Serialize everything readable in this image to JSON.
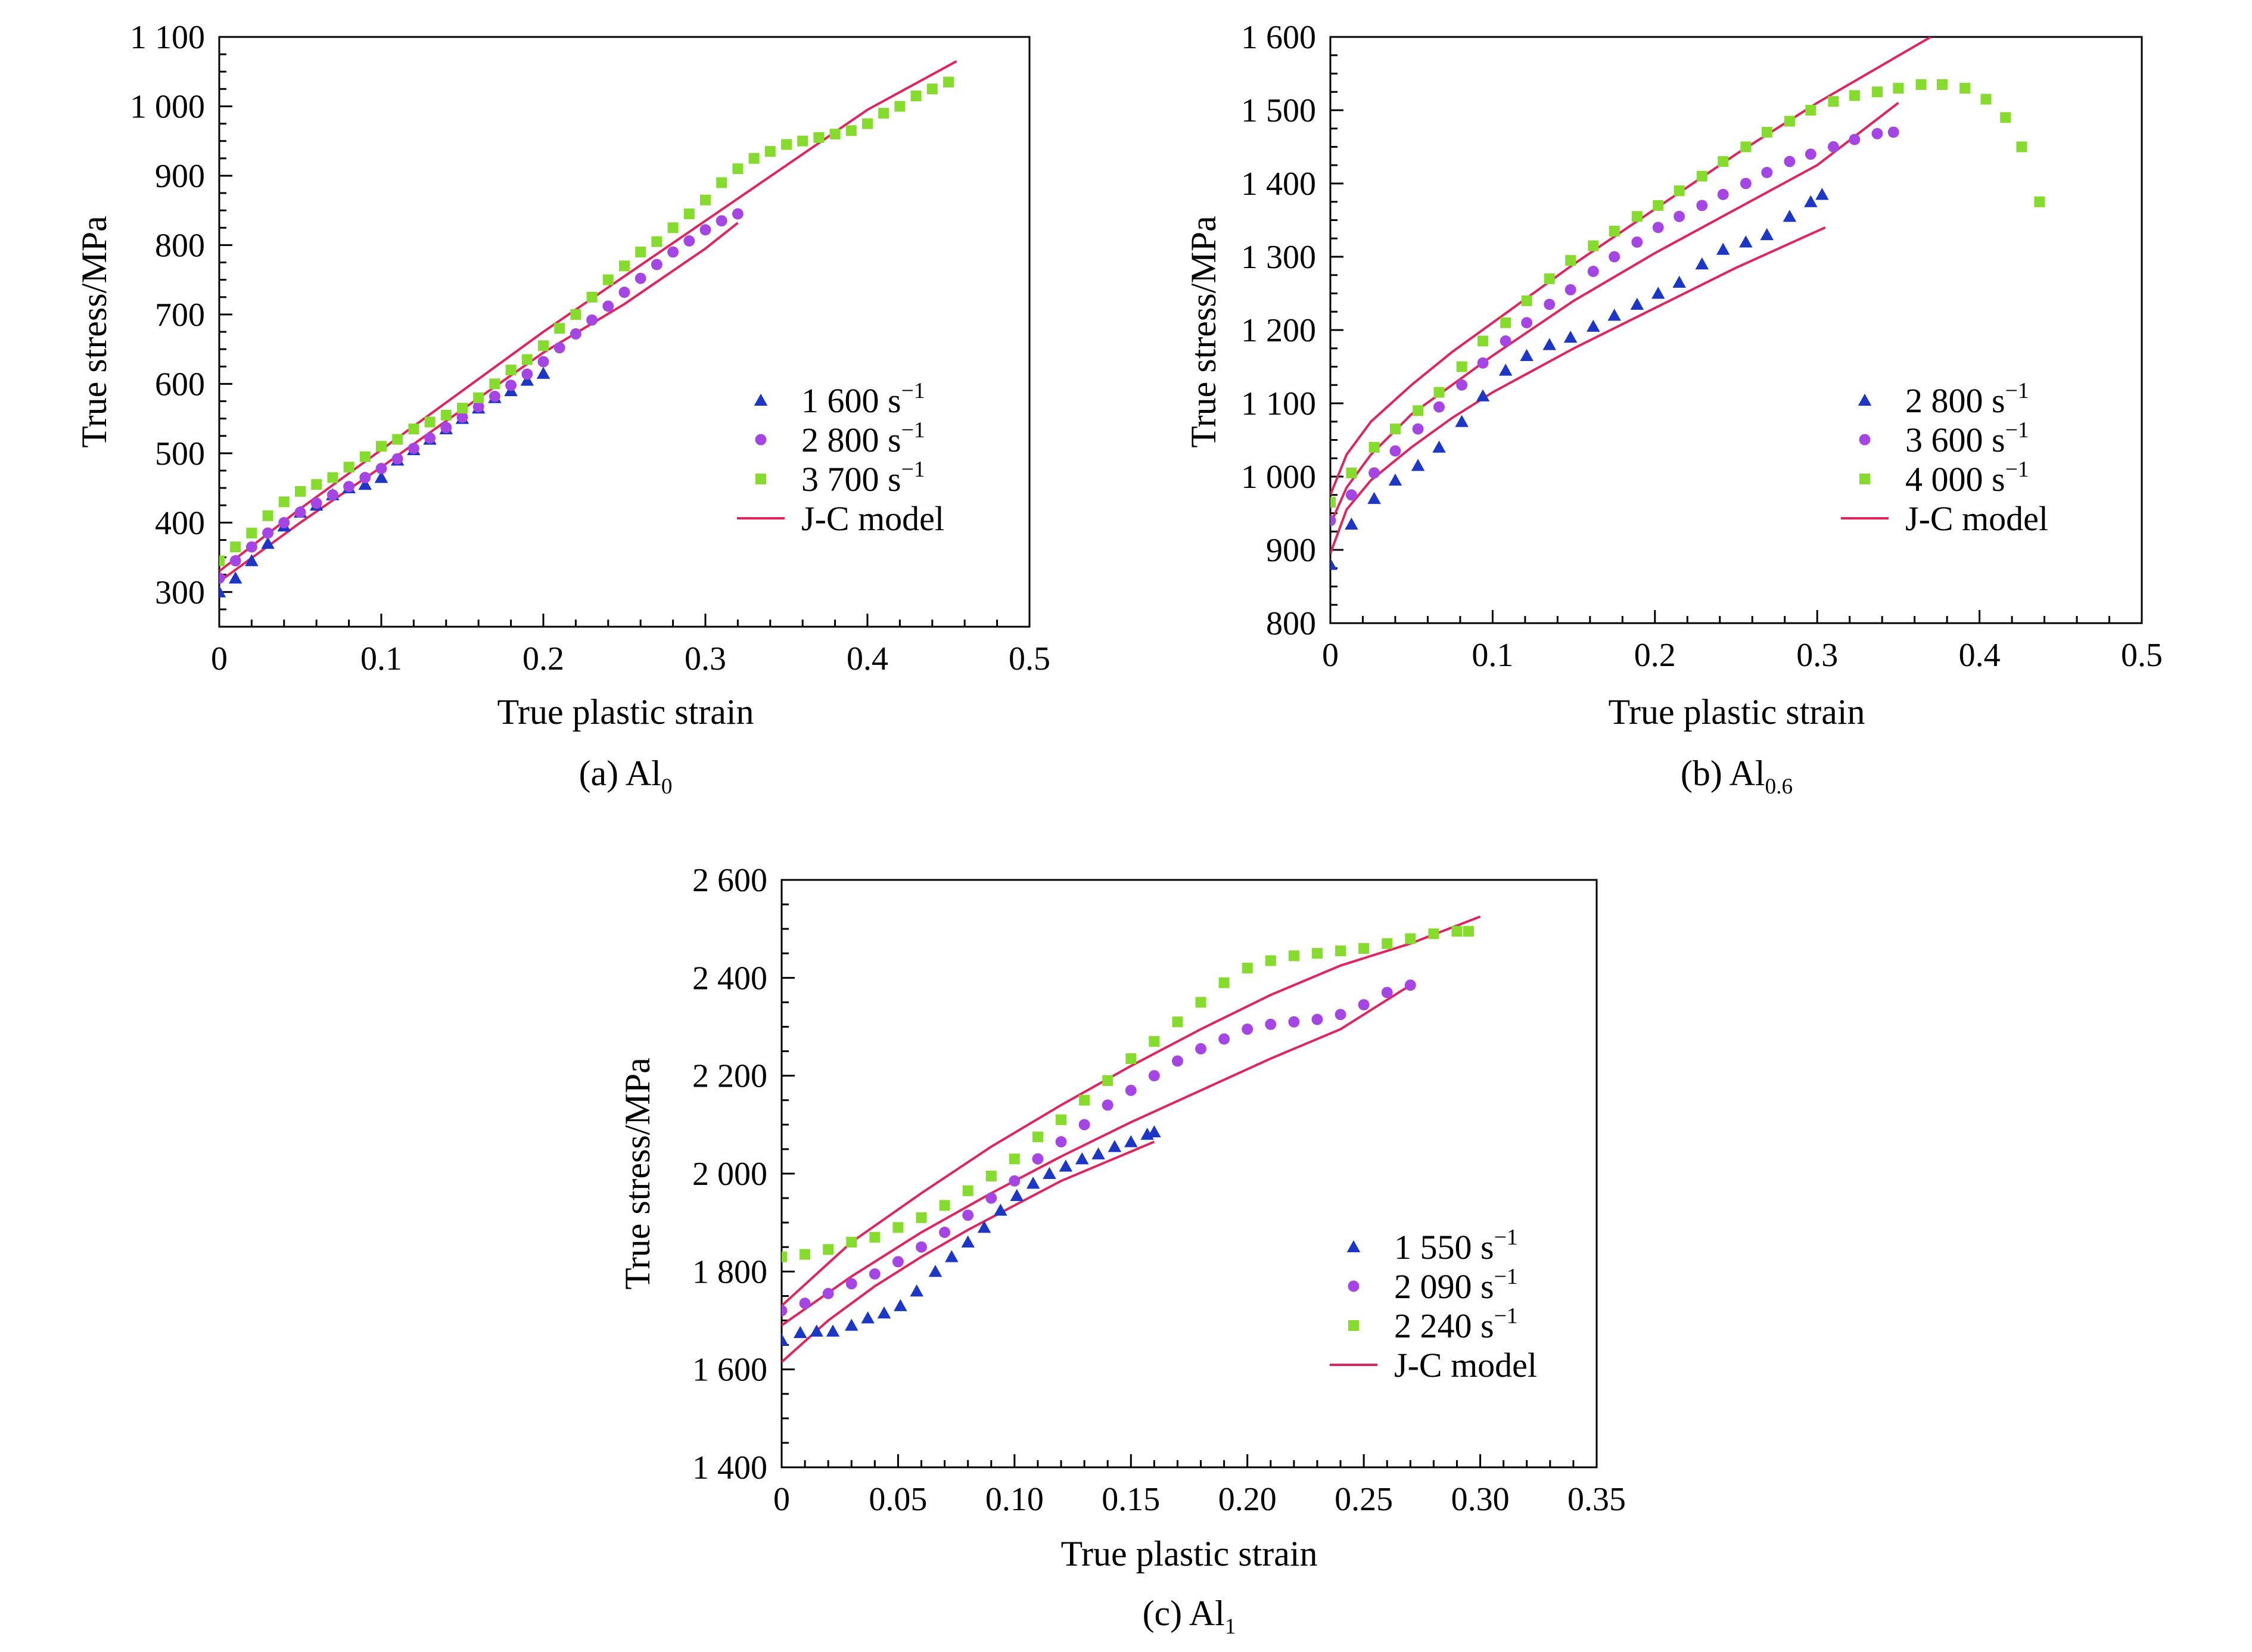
{
  "colors": {
    "series_blue": "#1c36c8",
    "series_purple": "#a545e6",
    "series_green": "#86dc2c",
    "model_line": "#e0245e",
    "axis": "#000000"
  },
  "chart_data": [
    {
      "id": "a",
      "type": "scatter",
      "caption_prefix": "(a) Al",
      "caption_sub": "0",
      "xlabel": "True plastic strain",
      "ylabel": "True stress/MPa",
      "xlim": [
        0,
        0.5
      ],
      "ylim": [
        250,
        1100
      ],
      "xticks": [
        0,
        0.1,
        0.2,
        0.3,
        0.4,
        0.5
      ],
      "xtick_labels": [
        "0",
        "0.1",
        "0.2",
        "0.3",
        "0.4",
        "0.5"
      ],
      "yticks": [
        300,
        400,
        500,
        600,
        700,
        800,
        900,
        1000,
        1100
      ],
      "ytick_labels": [
        "300",
        "400",
        "500",
        "600",
        "700",
        "800",
        "900",
        "1 000",
        "1 100"
      ],
      "legend_position": "right",
      "legend": [
        {
          "label": "1 600 s",
          "sup": "−1",
          "marker": "triangle",
          "color": "#1c36c8"
        },
        {
          "label": "2 800 s",
          "sup": "−1",
          "marker": "circle",
          "color": "#a545e6"
        },
        {
          "label": "3 700 s",
          "sup": "−1",
          "marker": "square",
          "color": "#86dc2c"
        },
        {
          "label": "J-C model",
          "marker": "line",
          "color": "#e0245e"
        }
      ],
      "series": [
        {
          "name": "1 600 s−1",
          "marker": "triangle",
          "color": "#1c36c8",
          "x": [
            0,
            0.01,
            0.02,
            0.03,
            0.04,
            0.05,
            0.06,
            0.07,
            0.08,
            0.09,
            0.1,
            0.11,
            0.12,
            0.13,
            0.14,
            0.15,
            0.16,
            0.17,
            0.18,
            0.19,
            0.2
          ],
          "y": [
            300,
            320,
            345,
            370,
            395,
            415,
            425,
            440,
            450,
            455,
            465,
            490,
            505,
            520,
            535,
            550,
            565,
            580,
            590,
            605,
            615
          ]
        },
        {
          "name": "2 800 s−1",
          "marker": "circle",
          "color": "#a545e6",
          "x": [
            0,
            0.01,
            0.02,
            0.03,
            0.04,
            0.05,
            0.06,
            0.07,
            0.08,
            0.09,
            0.1,
            0.11,
            0.12,
            0.13,
            0.14,
            0.15,
            0.16,
            0.17,
            0.18,
            0.19,
            0.2,
            0.21,
            0.22,
            0.23,
            0.24,
            0.25,
            0.26,
            0.27,
            0.28,
            0.29,
            0.3,
            0.31,
            0.32
          ],
          "y": [
            320,
            345,
            365,
            385,
            400,
            415,
            428,
            440,
            452,
            465,
            478,
            492,
            507,
            522,
            537,
            552,
            567,
            582,
            598,
            614,
            632,
            652,
            672,
            692,
            712,
            732,
            752,
            772,
            790,
            806,
            822,
            835,
            845
          ]
        },
        {
          "name": "3 700 s−1",
          "marker": "square",
          "color": "#86dc2c",
          "x": [
            0,
            0.01,
            0.02,
            0.03,
            0.04,
            0.05,
            0.06,
            0.07,
            0.08,
            0.09,
            0.1,
            0.11,
            0.12,
            0.13,
            0.14,
            0.15,
            0.16,
            0.17,
            0.18,
            0.19,
            0.2,
            0.21,
            0.22,
            0.23,
            0.24,
            0.25,
            0.26,
            0.27,
            0.28,
            0.29,
            0.3,
            0.31,
            0.32,
            0.33,
            0.34,
            0.35,
            0.36,
            0.37,
            0.38,
            0.39,
            0.4,
            0.41,
            0.42,
            0.43,
            0.44,
            0.45
          ],
          "y": [
            345,
            365,
            385,
            410,
            430,
            445,
            455,
            465,
            480,
            495,
            510,
            520,
            535,
            545,
            555,
            565,
            580,
            600,
            620,
            635,
            655,
            680,
            700,
            725,
            750,
            770,
            790,
            805,
            825,
            845,
            865,
            890,
            910,
            925,
            935,
            945,
            950,
            955,
            960,
            965,
            975,
            990,
            1000,
            1015,
            1025,
            1035
          ]
        },
        {
          "name": "J-C model",
          "marker": "line",
          "color": "#e0245e",
          "x": [
            0,
            0.05,
            0.1,
            0.15,
            0.2,
            0.25,
            0.3,
            0.32
          ],
          "y": [
            315,
            400,
            480,
            563,
            645,
            715,
            795,
            832
          ]
        },
        {
          "name": "J-C model",
          "marker": "line",
          "color": "#e0245e",
          "x": [
            0,
            0.05,
            0.1,
            0.15,
            0.2,
            0.25,
            0.3,
            0.35,
            0.4,
            0.455
          ],
          "y": [
            330,
            420,
            505,
            590,
            675,
            755,
            835,
            915,
            995,
            1065
          ]
        }
      ]
    },
    {
      "id": "b",
      "type": "scatter",
      "caption_prefix": "(b) Al",
      "caption_sub": "0.6",
      "xlabel": "True plastic strain",
      "ylabel": "True stress/MPa",
      "xlim": [
        0,
        0.5
      ],
      "ylim": [
        800,
        1600
      ],
      "xticks": [
        0,
        0.1,
        0.2,
        0.3,
        0.4,
        0.5
      ],
      "xtick_labels": [
        "0",
        "0.1",
        "0.2",
        "0.3",
        "0.4",
        "0.5"
      ],
      "yticks": [
        800,
        900,
        1000,
        1100,
        1200,
        1300,
        1400,
        1500,
        1600
      ],
      "ytick_labels": [
        "800",
        "900",
        "1 000",
        "1 100",
        "1 200",
        "1 300",
        "1 400",
        "1 500",
        "1 600"
      ],
      "legend_position": "right",
      "legend": [
        {
          "label": "2 800 s",
          "sup": "−1",
          "marker": "triangle",
          "color": "#1c36c8"
        },
        {
          "label": "3 600 s",
          "sup": "−1",
          "marker": "circle",
          "color": "#a545e6"
        },
        {
          "label": "4 000 s",
          "sup": "−1",
          "marker": "square",
          "color": "#86dc2c"
        },
        {
          "label": "J-C model",
          "marker": "line",
          "color": "#e0245e"
        }
      ],
      "series": [
        {
          "name": "2 800 s−1",
          "marker": "triangle",
          "color": "#1c36c8",
          "x": [
            0,
            0.013,
            0.027,
            0.04,
            0.054,
            0.067,
            0.081,
            0.094,
            0.108,
            0.121,
            0.135,
            0.148,
            0.162,
            0.175,
            0.189,
            0.202,
            0.215,
            0.229,
            0.242,
            0.256,
            0.269,
            0.283,
            0.296,
            0.303
          ],
          "y": [
            880,
            935,
            970,
            995,
            1015,
            1040,
            1075,
            1110,
            1145,
            1165,
            1180,
            1190,
            1205,
            1220,
            1235,
            1250,
            1265,
            1290,
            1310,
            1320,
            1330,
            1355,
            1375,
            1385
          ]
        },
        {
          "name": "3 600 s−1",
          "marker": "circle",
          "color": "#a545e6",
          "x": [
            0,
            0.013,
            0.027,
            0.04,
            0.054,
            0.067,
            0.081,
            0.094,
            0.108,
            0.121,
            0.135,
            0.148,
            0.162,
            0.175,
            0.189,
            0.202,
            0.215,
            0.229,
            0.242,
            0.256,
            0.269,
            0.283,
            0.296,
            0.31,
            0.323,
            0.337,
            0.347
          ],
          "y": [
            940,
            975,
            1005,
            1035,
            1065,
            1095,
            1125,
            1155,
            1185,
            1210,
            1235,
            1255,
            1280,
            1300,
            1320,
            1340,
            1355,
            1370,
            1385,
            1400,
            1415,
            1430,
            1440,
            1450,
            1460,
            1468,
            1470
          ]
        },
        {
          "name": "4 000 s−1",
          "marker": "square",
          "color": "#86dc2c",
          "x": [
            0,
            0.013,
            0.027,
            0.04,
            0.054,
            0.067,
            0.081,
            0.094,
            0.108,
            0.121,
            0.135,
            0.148,
            0.162,
            0.175,
            0.189,
            0.202,
            0.215,
            0.229,
            0.242,
            0.256,
            0.269,
            0.283,
            0.296,
            0.31,
            0.323,
            0.337,
            0.35,
            0.364,
            0.377,
            0.391,
            0.404,
            0.416,
            0.426,
            0.437
          ],
          "y": [
            965,
            1005,
            1040,
            1065,
            1090,
            1115,
            1150,
            1185,
            1210,
            1240,
            1270,
            1295,
            1315,
            1335,
            1355,
            1370,
            1390,
            1410,
            1430,
            1450,
            1470,
            1485,
            1500,
            1512,
            1520,
            1525,
            1530,
            1535,
            1535,
            1530,
            1515,
            1490,
            1450,
            1375
          ]
        },
        {
          "name": "J-C model",
          "marker": "line",
          "color": "#e0245e",
          "x": [
            0,
            0.01,
            0.025,
            0.05,
            0.075,
            0.1,
            0.15,
            0.2,
            0.25,
            0.3,
            0.305
          ],
          "y": [
            895,
            955,
            995,
            1040,
            1080,
            1115,
            1175,
            1230,
            1285,
            1335,
            1340
          ]
        },
        {
          "name": "J-C model",
          "marker": "line",
          "color": "#e0245e",
          "x": [
            0,
            0.01,
            0.025,
            0.05,
            0.075,
            0.1,
            0.15,
            0.2,
            0.25,
            0.3,
            0.35
          ],
          "y": [
            935,
            985,
            1030,
            1085,
            1125,
            1165,
            1240,
            1305,
            1365,
            1425,
            1510
          ]
        },
        {
          "name": "J-C model",
          "marker": "line",
          "color": "#e0245e",
          "x": [
            0,
            0.01,
            0.025,
            0.05,
            0.075,
            0.1,
            0.15,
            0.2,
            0.25,
            0.3,
            0.37
          ],
          "y": [
            975,
            1030,
            1075,
            1125,
            1170,
            1210,
            1290,
            1365,
            1440,
            1510,
            1600
          ]
        }
      ]
    },
    {
      "id": "c",
      "type": "scatter",
      "caption_prefix": "(c) Al",
      "caption_sub": "1",
      "xlabel": "True plastic strain",
      "ylabel": "True stress/MPa",
      "xlim": [
        0,
        0.35
      ],
      "ylim": [
        1400,
        2600
      ],
      "xticks": [
        0,
        0.05,
        0.1,
        0.15,
        0.2,
        0.25,
        0.3,
        0.35
      ],
      "xtick_labels": [
        "0",
        "0.05",
        "0.10",
        "0.15",
        "0.20",
        "0.25",
        "0.30",
        "0.35"
      ],
      "yticks": [
        1400,
        1600,
        1800,
        2000,
        2200,
        2400,
        2600
      ],
      "ytick_labels": [
        "1 400",
        "1 600",
        "1 800",
        "2 000",
        "2 200",
        "2 400",
        "2 600"
      ],
      "legend_position": "right",
      "legend": [
        {
          "label": "1 550 s",
          "sup": "−1",
          "marker": "triangle",
          "color": "#1c36c8"
        },
        {
          "label": "2 090 s",
          "sup": "−1",
          "marker": "circle",
          "color": "#a545e6"
        },
        {
          "label": "2 240 s",
          "sup": "−1",
          "marker": "square",
          "color": "#86dc2c"
        },
        {
          "label": "J-C model",
          "marker": "line",
          "color": "#e0245e"
        }
      ],
      "series": [
        {
          "name": "1 550 s−1",
          "marker": "triangle",
          "color": "#1c36c8",
          "x": [
            0,
            0.008,
            0.015,
            0.022,
            0.03,
            0.037,
            0.044,
            0.051,
            0.058,
            0.066,
            0.073,
            0.08,
            0.087,
            0.094,
            0.101,
            0.108,
            0.115,
            0.122,
            0.129,
            0.136,
            0.143,
            0.15,
            0.157,
            0.16
          ],
          "y": [
            1660,
            1675,
            1678,
            1678,
            1690,
            1705,
            1715,
            1730,
            1760,
            1800,
            1830,
            1860,
            1890,
            1925,
            1955,
            1980,
            2000,
            2015,
            2030,
            2040,
            2055,
            2065,
            2080,
            2085
          ]
        },
        {
          "name": "2 090 s−1",
          "marker": "circle",
          "color": "#a545e6",
          "x": [
            0,
            0.01,
            0.02,
            0.03,
            0.04,
            0.05,
            0.06,
            0.07,
            0.08,
            0.09,
            0.1,
            0.11,
            0.12,
            0.13,
            0.14,
            0.15,
            0.16,
            0.17,
            0.18,
            0.19,
            0.2,
            0.21,
            0.22,
            0.23,
            0.24,
            0.25,
            0.26,
            0.27
          ],
          "y": [
            1720,
            1735,
            1755,
            1775,
            1795,
            1820,
            1850,
            1880,
            1915,
            1950,
            1985,
            2030,
            2065,
            2100,
            2140,
            2170,
            2200,
            2230,
            2255,
            2275,
            2295,
            2305,
            2310,
            2315,
            2325,
            2345,
            2370,
            2385
          ]
        },
        {
          "name": "2 240 s−1",
          "marker": "square",
          "color": "#86dc2c",
          "x": [
            0,
            0.01,
            0.02,
            0.03,
            0.04,
            0.05,
            0.06,
            0.07,
            0.08,
            0.09,
            0.1,
            0.11,
            0.12,
            0.13,
            0.14,
            0.15,
            0.16,
            0.17,
            0.18,
            0.19,
            0.2,
            0.21,
            0.22,
            0.23,
            0.24,
            0.25,
            0.26,
            0.27,
            0.28,
            0.29,
            0.295
          ],
          "y": [
            1830,
            1835,
            1845,
            1860,
            1870,
            1890,
            1910,
            1935,
            1965,
            1995,
            2030,
            2075,
            2110,
            2150,
            2190,
            2235,
            2270,
            2310,
            2350,
            2390,
            2420,
            2435,
            2445,
            2450,
            2455,
            2460,
            2470,
            2480,
            2490,
            2495,
            2495
          ]
        },
        {
          "name": "J-C model",
          "marker": "line",
          "color": "#e0245e",
          "x": [
            0,
            0.02,
            0.04,
            0.06,
            0.08,
            0.1,
            0.12,
            0.14,
            0.16
          ],
          "y": [
            1615,
            1700,
            1770,
            1830,
            1885,
            1935,
            1985,
            2025,
            2065
          ]
        },
        {
          "name": "J-C model",
          "marker": "line",
          "color": "#e0245e",
          "x": [
            0,
            0.03,
            0.06,
            0.09,
            0.12,
            0.15,
            0.18,
            0.21,
            0.24,
            0.27
          ],
          "y": [
            1690,
            1790,
            1880,
            1960,
            2035,
            2105,
            2170,
            2235,
            2295,
            2385
          ]
        },
        {
          "name": "J-C model",
          "marker": "line",
          "color": "#e0245e",
          "x": [
            0,
            0.03,
            0.06,
            0.09,
            0.12,
            0.15,
            0.18,
            0.21,
            0.24,
            0.27,
            0.3
          ],
          "y": [
            1730,
            1860,
            1960,
            2055,
            2140,
            2220,
            2295,
            2365,
            2425,
            2470,
            2525
          ]
        }
      ]
    }
  ]
}
